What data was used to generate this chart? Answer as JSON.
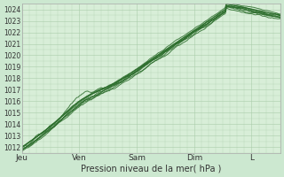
{
  "bg_color": "#cce8d0",
  "plot_bg_color": "#d8eed8",
  "grid_color": "#aaccaa",
  "line_color": "#2d6e2d",
  "title": "Pression niveau de la mer( hPa )",
  "ylabel_values": [
    1012,
    1013,
    1014,
    1015,
    1016,
    1017,
    1018,
    1019,
    1020,
    1021,
    1022,
    1023,
    1024
  ],
  "ylim": [
    1011.5,
    1024.5
  ],
  "x_ticks": [
    0,
    48,
    96,
    144,
    192
  ],
  "x_tick_labels": [
    "Jeu",
    "Ven",
    "Sam",
    "Dim",
    "L"
  ],
  "xlim": [
    0,
    216
  ]
}
